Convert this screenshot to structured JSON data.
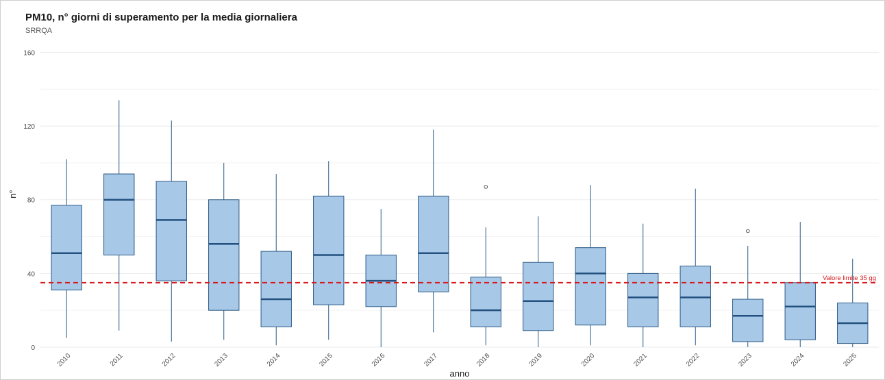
{
  "chart_data": {
    "type": "boxplot",
    "title": "PM10, n° giorni di superamento per la media giornaliera",
    "subtitle": "SRRQA",
    "xlabel": "anno",
    "ylabel": "n°",
    "ylim": [
      0,
      165
    ],
    "yticks": [
      0,
      40,
      80,
      120,
      160
    ],
    "grid": true,
    "categories": [
      "2010",
      "2011",
      "2012",
      "2013",
      "2014",
      "2015",
      "2016",
      "2017",
      "2018",
      "2019",
      "2020",
      "2021",
      "2022",
      "2023",
      "2024",
      "2025"
    ],
    "boxes": [
      {
        "min": 5,
        "q1": 31,
        "median": 51,
        "q3": 77,
        "max": 102,
        "outliers": []
      },
      {
        "min": 9,
        "q1": 50,
        "median": 80,
        "q3": 94,
        "max": 134,
        "outliers": []
      },
      {
        "min": 3,
        "q1": 36,
        "median": 69,
        "q3": 90,
        "max": 123,
        "outliers": []
      },
      {
        "min": 4,
        "q1": 20,
        "median": 56,
        "q3": 80,
        "max": 100,
        "outliers": []
      },
      {
        "min": 1,
        "q1": 11,
        "median": 26,
        "q3": 52,
        "max": 94,
        "outliers": []
      },
      {
        "min": 4,
        "q1": 23,
        "median": 50,
        "q3": 82,
        "max": 101,
        "outliers": []
      },
      {
        "min": 0,
        "q1": 22,
        "median": 36,
        "q3": 50,
        "max": 75,
        "outliers": []
      },
      {
        "min": 8,
        "q1": 30,
        "median": 51,
        "q3": 82,
        "max": 118,
        "outliers": []
      },
      {
        "min": 1,
        "q1": 11,
        "median": 20,
        "q3": 38,
        "max": 65,
        "outliers": [
          87
        ]
      },
      {
        "min": 0,
        "q1": 9,
        "median": 25,
        "q3": 46,
        "max": 71,
        "outliers": []
      },
      {
        "min": 1,
        "q1": 12,
        "median": 40,
        "q3": 54,
        "max": 88,
        "outliers": []
      },
      {
        "min": 0,
        "q1": 11,
        "median": 27,
        "q3": 40,
        "max": 67,
        "outliers": []
      },
      {
        "min": 1,
        "q1": 11,
        "median": 27,
        "q3": 44,
        "max": 86,
        "outliers": []
      },
      {
        "min": 0,
        "q1": 3,
        "median": 17,
        "q3": 26,
        "max": 55,
        "outliers": [
          63
        ]
      },
      {
        "min": 0,
        "q1": 4,
        "median": 22,
        "q3": 35,
        "max": 68,
        "outliers": []
      },
      {
        "min": 0,
        "q1": 2,
        "median": 13,
        "q3": 24,
        "max": 48,
        "outliers": []
      }
    ],
    "reference_line": {
      "value": 35,
      "label": "Valore limite 35 gg",
      "color": "#d7191c",
      "style": "dashed"
    },
    "colors": {
      "box_fill": "#a8c8e8",
      "box_stroke": "#2b5a85",
      "median": "#23517f",
      "whisker": "#2b5a85",
      "grid": "#ebebeb",
      "axis_text": "#4d4d4d"
    }
  }
}
